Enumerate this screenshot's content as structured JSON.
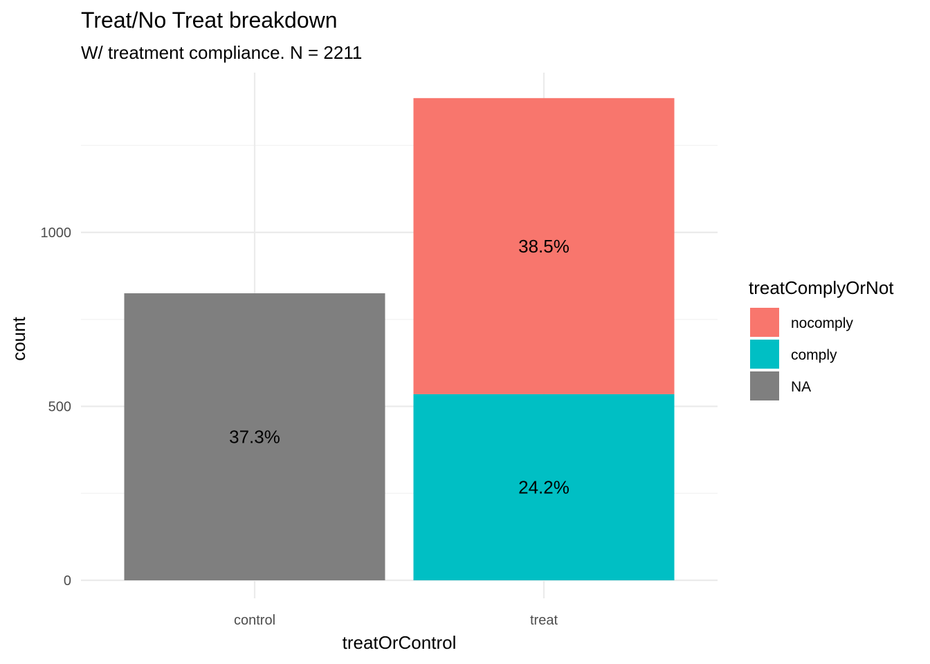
{
  "chart_data": {
    "type": "bar",
    "stacked": true,
    "title": "Treat/No Treat breakdown",
    "subtitle": "W/ treatment compliance. N = 2211",
    "xlabel": "treatOrControl",
    "ylabel": "count",
    "categories": [
      "control",
      "treat"
    ],
    "ylim": [
      0,
      1390
    ],
    "yticks": [
      0,
      500,
      1000
    ],
    "grid": true,
    "legend": {
      "title": "treatComplyOrNot",
      "position": "right",
      "entries": [
        {
          "name": "nocomply",
          "color": "#F8766D"
        },
        {
          "name": "comply",
          "color": "#00BFC4"
        },
        {
          "name": "NA",
          "color": "#7F7F7F"
        }
      ]
    },
    "series": [
      {
        "name": "comply",
        "color": "#00BFC4",
        "values": [
          0,
          535
        ],
        "labels": [
          "",
          "24.2%"
        ]
      },
      {
        "name": "nocomply",
        "color": "#F8766D",
        "values": [
          0,
          851
        ],
        "labels": [
          "",
          "38.5%"
        ]
      },
      {
        "name": "NA",
        "color": "#7F7F7F",
        "values": [
          825,
          0
        ],
        "labels": [
          "37.3%",
          ""
        ]
      }
    ]
  }
}
